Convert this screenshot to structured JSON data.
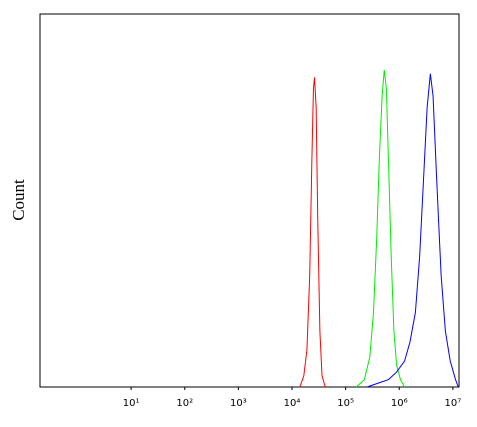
{
  "chart_data": {
    "type": "line",
    "y_label": "Count",
    "log_x": true,
    "xlim": [
      0.2,
      13000000
    ],
    "ylim": [
      0,
      100
    ],
    "xticks": [
      {
        "value": 10,
        "label": "10¹"
      },
      {
        "value": 100,
        "label": "10²"
      },
      {
        "value": 1000,
        "label": "10³"
      },
      {
        "value": 10000,
        "label": "10⁴"
      },
      {
        "value": 100000,
        "label": "10⁵"
      },
      {
        "value": 1000000,
        "label": "10⁶"
      },
      {
        "value": 10000000,
        "label": "10⁷"
      }
    ],
    "series": [
      {
        "color": "#ff0000",
        "x": [
          14000,
          16600,
          19000,
          21400,
          23400,
          25100,
          26300,
          28200,
          30200,
          33100,
          36300,
          41700
        ],
        "values": [
          0,
          3,
          10,
          30,
          60,
          80,
          83,
          75,
          45,
          15,
          3,
          0
        ]
      },
      {
        "color": "#00ee00",
        "x": [
          158000,
          224000,
          282000,
          331000,
          380000,
          427000,
          479000,
          525000,
          575000,
          631000,
          708000,
          794000,
          891000,
          1050000,
          1260000
        ],
        "values": [
          0,
          2,
          8,
          20,
          40,
          62,
          78,
          85,
          80,
          60,
          35,
          15,
          6,
          2,
          0
        ]
      },
      {
        "color": "#0000ff",
        "x": [
          251000,
          398000,
          631000,
          891000,
          1260000,
          1580000,
          2000000,
          2400000,
          2820000,
          3310000,
          3800000,
          4270000,
          5010000,
          6030000,
          7240000,
          8910000,
          11200000,
          12600000
        ],
        "values": [
          0,
          1,
          2,
          4,
          7,
          12,
          20,
          35,
          55,
          75,
          84,
          78,
          55,
          30,
          15,
          7,
          2,
          0
        ]
      }
    ]
  }
}
